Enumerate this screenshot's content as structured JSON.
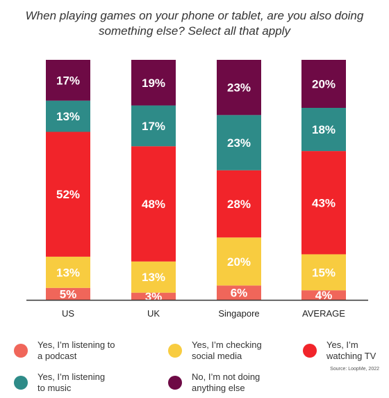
{
  "chart_data": {
    "type": "bar",
    "stacked": true,
    "title": "When playing games on your phone or tablet, are you also doing something else? Select all that apply",
    "categories": [
      "US",
      "UK",
      "Singapore",
      "AVERAGE"
    ],
    "series": [
      {
        "name": "Yes, I’m listening to a podcast",
        "values": [
          5,
          3,
          6,
          4
        ],
        "color": "#f0665a"
      },
      {
        "name": "Yes, I’m checking social media",
        "values": [
          13,
          13,
          20,
          15
        ],
        "color": "#f8cc40"
      },
      {
        "name": "Yes, I’m watching TV",
        "values": [
          52,
          48,
          28,
          43
        ],
        "color": "#f1242a"
      },
      {
        "name": "Yes, I’m listening to music",
        "values": [
          13,
          17,
          23,
          18
        ],
        "color": "#2e8b88"
      },
      {
        "name": "No, I’m not doing anything else",
        "values": [
          17,
          19,
          23,
          20
        ],
        "color": "#6e0a45"
      }
    ],
    "value_suffix": "%",
    "xlabel": "",
    "ylabel": "",
    "grid": false,
    "legend_position": "bottom"
  },
  "legend_items": [
    {
      "label": "Yes, I’m listening to\na podcast",
      "color": "#f0665a",
      "icon": "circle"
    },
    {
      "label": "Yes, I’m checking\nsocial media",
      "color": "#f8cc40",
      "icon": "circle"
    },
    {
      "label": "Yes, I’m\nwatching TV",
      "color": "#f1242a",
      "icon": "circle"
    },
    {
      "label": "Yes, I’m listening\nto music",
      "color": "#2e8b88",
      "icon": "circle"
    },
    {
      "label": "No, I’m not doing\nanything else",
      "color": "#6e0a45",
      "icon": "circle"
    }
  ],
  "source": "Source: LoopMe, 2022"
}
